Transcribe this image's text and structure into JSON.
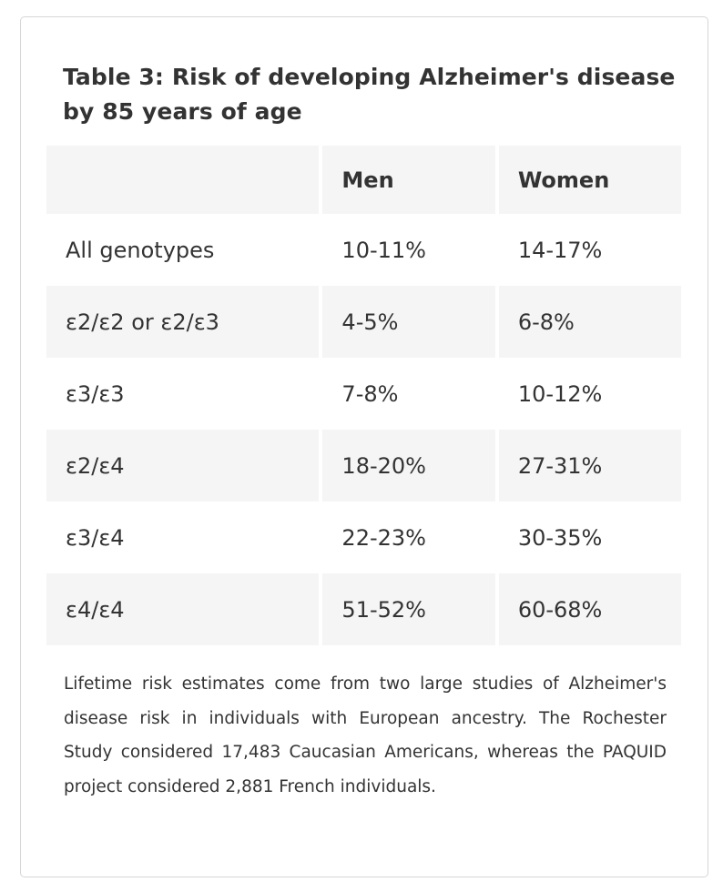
{
  "title": "Table 3: Risk of developing Alzheimer's disease by 85 years of age",
  "table": {
    "headers": [
      "",
      "Men",
      "Women"
    ],
    "rows": [
      {
        "genotype": "All genotypes",
        "men": "10-11%",
        "women": "14-17%"
      },
      {
        "genotype": "ε2/ε2 or ε2/ε3",
        "men": "4-5%",
        "women": "6-8%"
      },
      {
        "genotype": "ε3/ε3",
        "men": "7-8%",
        "women": "10-12%"
      },
      {
        "genotype": "ε2/ε4",
        "men": "18-20%",
        "women": "27-31%"
      },
      {
        "genotype": "ε3/ε4",
        "men": "22-23%",
        "women": "30-35%"
      },
      {
        "genotype": "ε4/ε4",
        "men": "51-52%",
        "women": "60-68%"
      }
    ]
  },
  "note": "Lifetime risk estimates come from two large studies of Alzheimer's disease risk in individuals with European ancestry. The Rochester Study considered 17,483 Caucasian Americans, whereas the PAQUID project considered 2,881 French individuals.",
  "colors": {
    "text": "#333333",
    "shade": "#f5f5f5",
    "border": "#d6d6d6",
    "background": "#ffffff"
  }
}
